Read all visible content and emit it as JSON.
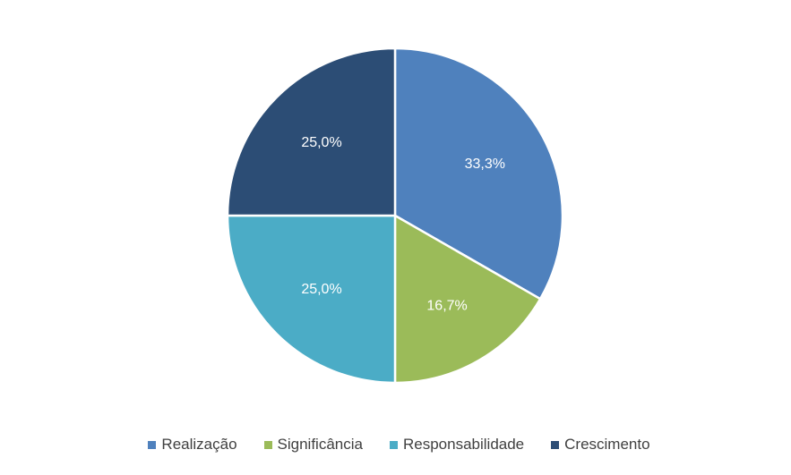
{
  "chart_data": {
    "type": "pie",
    "title": "",
    "legend_position": "bottom",
    "start_angle": "top",
    "direction": "clockwise",
    "categories": [
      "Realização",
      "Significância",
      "Responsabilidade",
      "Crescimento"
    ],
    "values": [
      33.3,
      16.7,
      25.0,
      25.0
    ],
    "data_labels": [
      "33,3%",
      "16,7%",
      "25,0%",
      "25,0%"
    ],
    "colors": [
      "#4f81bd",
      "#9bbb59",
      "#4bacc6",
      "#2c4d75"
    ]
  }
}
